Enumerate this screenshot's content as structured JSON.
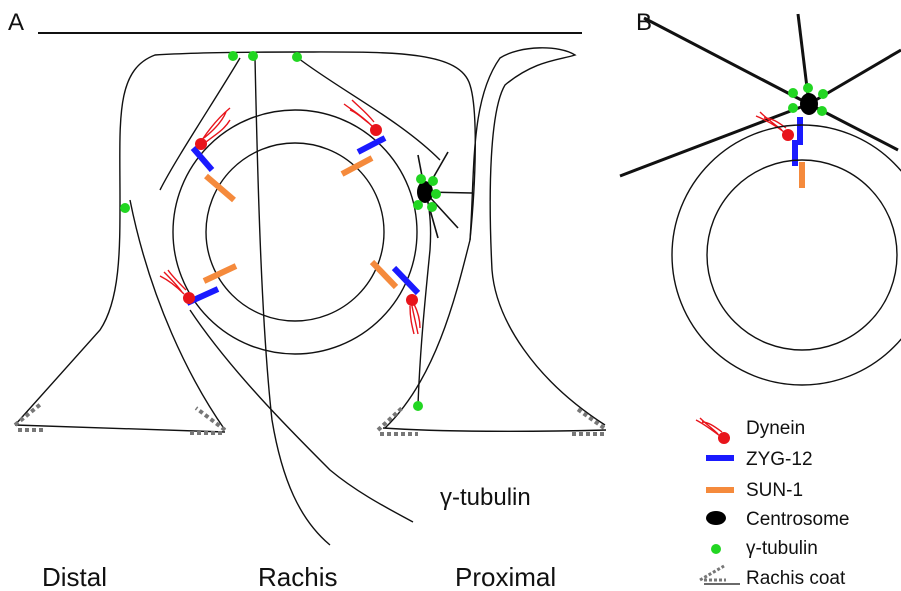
{
  "panels": {
    "a": {
      "letter": "A"
    },
    "b": {
      "letter": "B"
    }
  },
  "labels": {
    "distal": "Distal",
    "rachis": "Rachis",
    "proximal": "Proximal",
    "gamma_tubulin": "γ-tubulin"
  },
  "legend": [
    {
      "key": "dynein",
      "label": "Dynein",
      "symbol": "dynein-icon"
    },
    {
      "key": "zyg12",
      "label": "ZYG-12",
      "symbol": "blue-bar-icon"
    },
    {
      "key": "sun1",
      "label": "SUN-1",
      "symbol": "orange-bar-icon"
    },
    {
      "key": "centrosome",
      "label": "Centrosome",
      "symbol": "black-ellipse-icon"
    },
    {
      "key": "gtub",
      "label": "γ-tubulin",
      "symbol": "green-dot-icon"
    },
    {
      "key": "rachis_coat",
      "label": "Rachis coat",
      "symbol": "rachis-coat-icon"
    }
  ],
  "colors": {
    "dynein": "#e8141b",
    "zyg12": "#1a1aff",
    "sun1": "#f58a3c",
    "centrosome": "#000000",
    "gamma_tubulin": "#22d622",
    "line": "#111111",
    "coat": "#777777"
  }
}
